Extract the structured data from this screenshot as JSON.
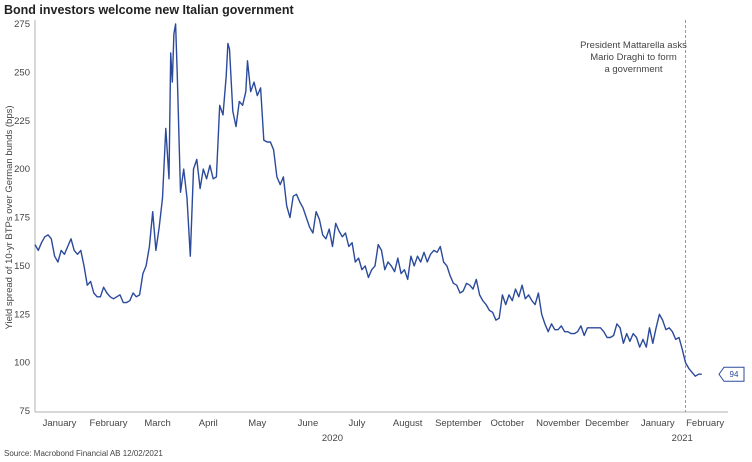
{
  "chart_data": {
    "type": "line",
    "title": "Bond investors welcome new Italian government",
    "ylabel": "Yield spread of 10-yr BTPs over German bunds (bps)",
    "ylim": [
      75,
      275
    ],
    "yticks": [
      75,
      100,
      125,
      150,
      175,
      200,
      225,
      250,
      275
    ],
    "xlim": [
      "2020-01-01",
      "2021-02-28"
    ],
    "month_labels": [
      {
        "label": "January",
        "date": "2020-01-16"
      },
      {
        "label": "February",
        "date": "2020-02-15"
      },
      {
        "label": "March",
        "date": "2020-03-16"
      },
      {
        "label": "April",
        "date": "2020-04-16"
      },
      {
        "label": "May",
        "date": "2020-05-16"
      },
      {
        "label": "June",
        "date": "2020-06-16"
      },
      {
        "label": "July",
        "date": "2020-07-16"
      },
      {
        "label": "August",
        "date": "2020-08-16"
      },
      {
        "label": "September",
        "date": "2020-09-16"
      },
      {
        "label": "October",
        "date": "2020-10-16"
      },
      {
        "label": "November",
        "date": "2020-11-16"
      },
      {
        "label": "December",
        "date": "2020-12-16"
      },
      {
        "label": "January",
        "date": "2021-01-16"
      },
      {
        "label": "February",
        "date": "2021-02-14"
      }
    ],
    "year_labels": [
      {
        "label": "2020",
        "date": "2020-07-01"
      },
      {
        "label": "2021",
        "date": "2021-01-31"
      }
    ],
    "series": [
      {
        "color": "#2b4a9b",
        "points": [
          [
            "2020-01-01",
            161
          ],
          [
            "2020-01-03",
            158
          ],
          [
            "2020-01-05",
            162
          ],
          [
            "2020-01-07",
            165
          ],
          [
            "2020-01-09",
            166
          ],
          [
            "2020-01-11",
            164
          ],
          [
            "2020-01-13",
            155
          ],
          [
            "2020-01-15",
            152
          ],
          [
            "2020-01-17",
            158
          ],
          [
            "2020-01-19",
            156
          ],
          [
            "2020-01-21",
            160
          ],
          [
            "2020-01-23",
            164
          ],
          [
            "2020-01-25",
            158
          ],
          [
            "2020-01-27",
            156
          ],
          [
            "2020-01-29",
            158
          ],
          [
            "2020-01-31",
            150
          ],
          [
            "2020-02-02",
            140
          ],
          [
            "2020-02-04",
            142
          ],
          [
            "2020-02-06",
            136
          ],
          [
            "2020-02-08",
            134
          ],
          [
            "2020-02-10",
            134
          ],
          [
            "2020-02-12",
            139
          ],
          [
            "2020-02-14",
            136
          ],
          [
            "2020-02-16",
            134
          ],
          [
            "2020-02-18",
            133
          ],
          [
            "2020-02-20",
            134
          ],
          [
            "2020-02-22",
            135
          ],
          [
            "2020-02-24",
            131
          ],
          [
            "2020-02-26",
            131
          ],
          [
            "2020-02-28",
            132
          ],
          [
            "2020-03-01",
            136
          ],
          [
            "2020-03-03",
            134
          ],
          [
            "2020-03-05",
            135
          ],
          [
            "2020-03-07",
            146
          ],
          [
            "2020-03-09",
            150
          ],
          [
            "2020-03-11",
            160
          ],
          [
            "2020-03-13",
            178
          ],
          [
            "2020-03-15",
            158
          ],
          [
            "2020-03-17",
            170
          ],
          [
            "2020-03-19",
            185
          ],
          [
            "2020-03-21",
            221
          ],
          [
            "2020-03-23",
            195
          ],
          [
            "2020-03-24",
            260
          ],
          [
            "2020-03-25",
            245
          ],
          [
            "2020-03-26",
            270
          ],
          [
            "2020-03-27",
            275
          ],
          [
            "2020-03-28",
            250
          ],
          [
            "2020-03-30",
            188
          ],
          [
            "2020-04-01",
            200
          ],
          [
            "2020-04-03",
            185
          ],
          [
            "2020-04-05",
            155
          ],
          [
            "2020-04-07",
            200
          ],
          [
            "2020-04-09",
            205
          ],
          [
            "2020-04-11",
            190
          ],
          [
            "2020-04-13",
            200
          ],
          [
            "2020-04-15",
            195
          ],
          [
            "2020-04-17",
            202
          ],
          [
            "2020-04-19",
            195
          ],
          [
            "2020-04-21",
            196
          ],
          [
            "2020-04-23",
            233
          ],
          [
            "2020-04-25",
            228
          ],
          [
            "2020-04-27",
            248
          ],
          [
            "2020-04-28",
            265
          ],
          [
            "2020-04-29",
            262
          ],
          [
            "2020-05-01",
            230
          ],
          [
            "2020-05-03",
            222
          ],
          [
            "2020-05-05",
            235
          ],
          [
            "2020-05-07",
            233
          ],
          [
            "2020-05-09",
            240
          ],
          [
            "2020-05-10",
            256
          ],
          [
            "2020-05-12",
            240
          ],
          [
            "2020-05-14",
            245
          ],
          [
            "2020-05-16",
            238
          ],
          [
            "2020-05-18",
            242
          ],
          [
            "2020-05-20",
            215
          ],
          [
            "2020-05-22",
            214
          ],
          [
            "2020-05-24",
            214
          ],
          [
            "2020-05-26",
            210
          ],
          [
            "2020-05-28",
            196
          ],
          [
            "2020-05-30",
            192
          ],
          [
            "2020-06-01",
            196
          ],
          [
            "2020-06-03",
            181
          ],
          [
            "2020-06-05",
            175
          ],
          [
            "2020-06-07",
            186
          ],
          [
            "2020-06-09",
            187
          ],
          [
            "2020-06-11",
            183
          ],
          [
            "2020-06-13",
            180
          ],
          [
            "2020-06-15",
            175
          ],
          [
            "2020-06-17",
            170
          ],
          [
            "2020-06-19",
            167
          ],
          [
            "2020-06-21",
            178
          ],
          [
            "2020-06-23",
            174
          ],
          [
            "2020-06-25",
            166
          ],
          [
            "2020-06-27",
            164
          ],
          [
            "2020-06-29",
            169
          ],
          [
            "2020-07-01",
            160
          ],
          [
            "2020-07-03",
            172
          ],
          [
            "2020-07-05",
            168
          ],
          [
            "2020-07-07",
            165
          ],
          [
            "2020-07-09",
            167
          ],
          [
            "2020-07-11",
            160
          ],
          [
            "2020-07-13",
            162
          ],
          [
            "2020-07-15",
            152
          ],
          [
            "2020-07-17",
            154
          ],
          [
            "2020-07-19",
            148
          ],
          [
            "2020-07-21",
            150
          ],
          [
            "2020-07-23",
            144
          ],
          [
            "2020-07-25",
            148
          ],
          [
            "2020-07-27",
            150
          ],
          [
            "2020-07-29",
            161
          ],
          [
            "2020-07-31",
            158
          ],
          [
            "2020-08-02",
            148
          ],
          [
            "2020-08-04",
            152
          ],
          [
            "2020-08-06",
            150
          ],
          [
            "2020-08-08",
            147
          ],
          [
            "2020-08-10",
            154
          ],
          [
            "2020-08-12",
            146
          ],
          [
            "2020-08-14",
            148
          ],
          [
            "2020-08-16",
            143
          ],
          [
            "2020-08-18",
            155
          ],
          [
            "2020-08-20",
            150
          ],
          [
            "2020-08-22",
            155
          ],
          [
            "2020-08-24",
            152
          ],
          [
            "2020-08-26",
            157
          ],
          [
            "2020-08-28",
            152
          ],
          [
            "2020-08-30",
            156
          ],
          [
            "2020-09-01",
            158
          ],
          [
            "2020-09-03",
            157
          ],
          [
            "2020-09-05",
            160
          ],
          [
            "2020-09-07",
            152
          ],
          [
            "2020-09-09",
            150
          ],
          [
            "2020-09-11",
            145
          ],
          [
            "2020-09-13",
            141
          ],
          [
            "2020-09-15",
            140
          ],
          [
            "2020-09-17",
            136
          ],
          [
            "2020-09-19",
            137
          ],
          [
            "2020-09-21",
            141
          ],
          [
            "2020-09-23",
            140
          ],
          [
            "2020-09-25",
            138
          ],
          [
            "2020-09-27",
            143
          ],
          [
            "2020-09-29",
            135
          ],
          [
            "2020-10-01",
            132
          ],
          [
            "2020-10-03",
            130
          ],
          [
            "2020-10-05",
            127
          ],
          [
            "2020-10-07",
            126
          ],
          [
            "2020-10-09",
            122
          ],
          [
            "2020-10-11",
            123
          ],
          [
            "2020-10-13",
            135
          ],
          [
            "2020-10-15",
            130
          ],
          [
            "2020-10-17",
            135
          ],
          [
            "2020-10-19",
            132
          ],
          [
            "2020-10-21",
            138
          ],
          [
            "2020-10-23",
            134
          ],
          [
            "2020-10-25",
            140
          ],
          [
            "2020-10-27",
            133
          ],
          [
            "2020-10-29",
            135
          ],
          [
            "2020-10-31",
            132
          ],
          [
            "2020-11-02",
            130
          ],
          [
            "2020-11-04",
            136
          ],
          [
            "2020-11-06",
            125
          ],
          [
            "2020-11-08",
            120
          ],
          [
            "2020-11-10",
            116
          ],
          [
            "2020-11-12",
            120
          ],
          [
            "2020-11-14",
            117
          ],
          [
            "2020-11-16",
            117
          ],
          [
            "2020-11-18",
            119
          ],
          [
            "2020-11-20",
            116
          ],
          [
            "2020-11-22",
            116
          ],
          [
            "2020-11-24",
            115
          ],
          [
            "2020-11-26",
            115
          ],
          [
            "2020-11-28",
            116
          ],
          [
            "2020-11-30",
            119
          ],
          [
            "2020-12-02",
            114
          ],
          [
            "2020-12-04",
            118
          ],
          [
            "2020-12-06",
            118
          ],
          [
            "2020-12-08",
            118
          ],
          [
            "2020-12-10",
            118
          ],
          [
            "2020-12-12",
            118
          ],
          [
            "2020-12-14",
            116
          ],
          [
            "2020-12-16",
            113
          ],
          [
            "2020-12-18",
            113
          ],
          [
            "2020-12-20",
            114
          ],
          [
            "2020-12-22",
            120
          ],
          [
            "2020-12-24",
            118
          ],
          [
            "2020-12-26",
            110
          ],
          [
            "2020-12-28",
            115
          ],
          [
            "2020-12-30",
            111
          ],
          [
            "2021-01-01",
            115
          ],
          [
            "2021-01-03",
            113
          ],
          [
            "2021-01-05",
            108
          ],
          [
            "2021-01-07",
            112
          ],
          [
            "2021-01-09",
            108
          ],
          [
            "2021-01-11",
            118
          ],
          [
            "2021-01-13",
            110
          ],
          [
            "2021-01-15",
            118
          ],
          [
            "2021-01-17",
            125
          ],
          [
            "2021-01-19",
            122
          ],
          [
            "2021-01-21",
            117
          ],
          [
            "2021-01-23",
            118
          ],
          [
            "2021-01-25",
            116
          ],
          [
            "2021-01-27",
            112
          ],
          [
            "2021-01-29",
            113
          ],
          [
            "2021-01-31",
            107
          ],
          [
            "2021-02-02",
            100
          ],
          [
            "2021-02-04",
            97
          ],
          [
            "2021-02-06",
            95
          ],
          [
            "2021-02-08",
            93
          ],
          [
            "2021-02-10",
            94
          ],
          [
            "2021-02-12",
            94
          ]
        ]
      }
    ],
    "last_value_label": "94",
    "annotation": {
      "date": "2021-02-02",
      "lines": [
        "President Mattarella asks",
        "Mario Draghi to form",
        "a government"
      ]
    },
    "grid": false,
    "legend": "none"
  },
  "source": "Source: Macrobond Financial AB 12/02/2021",
  "colors": {
    "line": "#2b4a9b",
    "axis": "#b0b0b0",
    "annotation_line": "#999999"
  }
}
